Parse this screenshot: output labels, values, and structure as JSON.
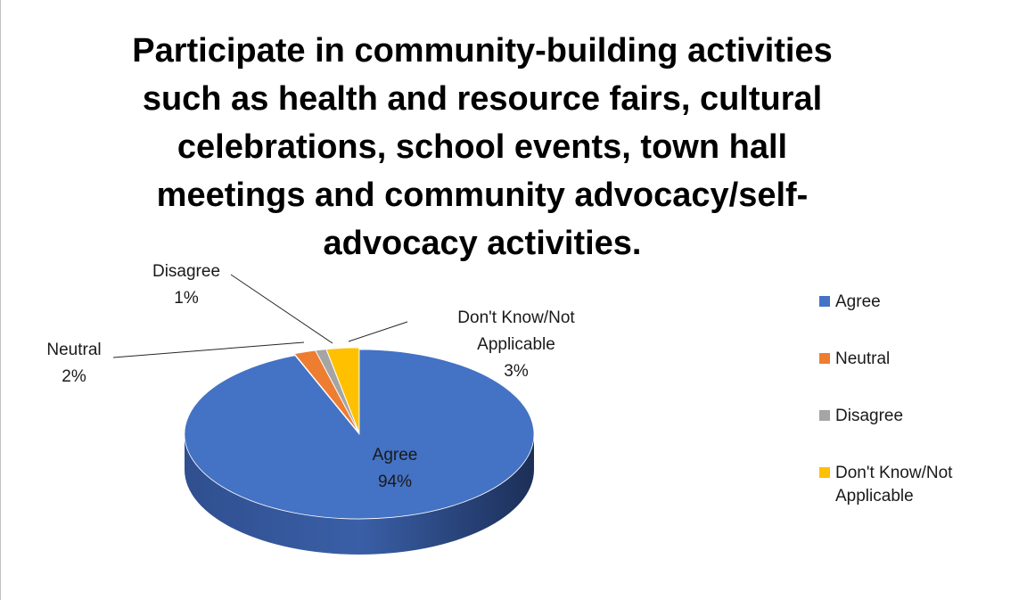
{
  "chart_data": {
    "type": "pie",
    "title": "Participate in community-building activities such as health and resource fairs, cultural celebrations, school events, town hall meetings and community advocacy/self-advocacy activities.",
    "categories": [
      "Agree",
      "Neutral",
      "Disagree",
      "Don't Know/Not Applicable"
    ],
    "values": [
      94,
      2,
      1,
      3
    ],
    "data_labels": [
      {
        "category": "Agree",
        "percent": "94%"
      },
      {
        "category": "Neutral",
        "percent": "2%"
      },
      {
        "category": "Disagree",
        "percent": "1%"
      },
      {
        "category": "Don't Know/Not Applicable",
        "percent": "3%"
      }
    ],
    "colors": [
      "#4472C4",
      "#ED7D31",
      "#A5A5A5",
      "#FFC000"
    ],
    "legend_position": "right",
    "style": "3d-pie"
  }
}
